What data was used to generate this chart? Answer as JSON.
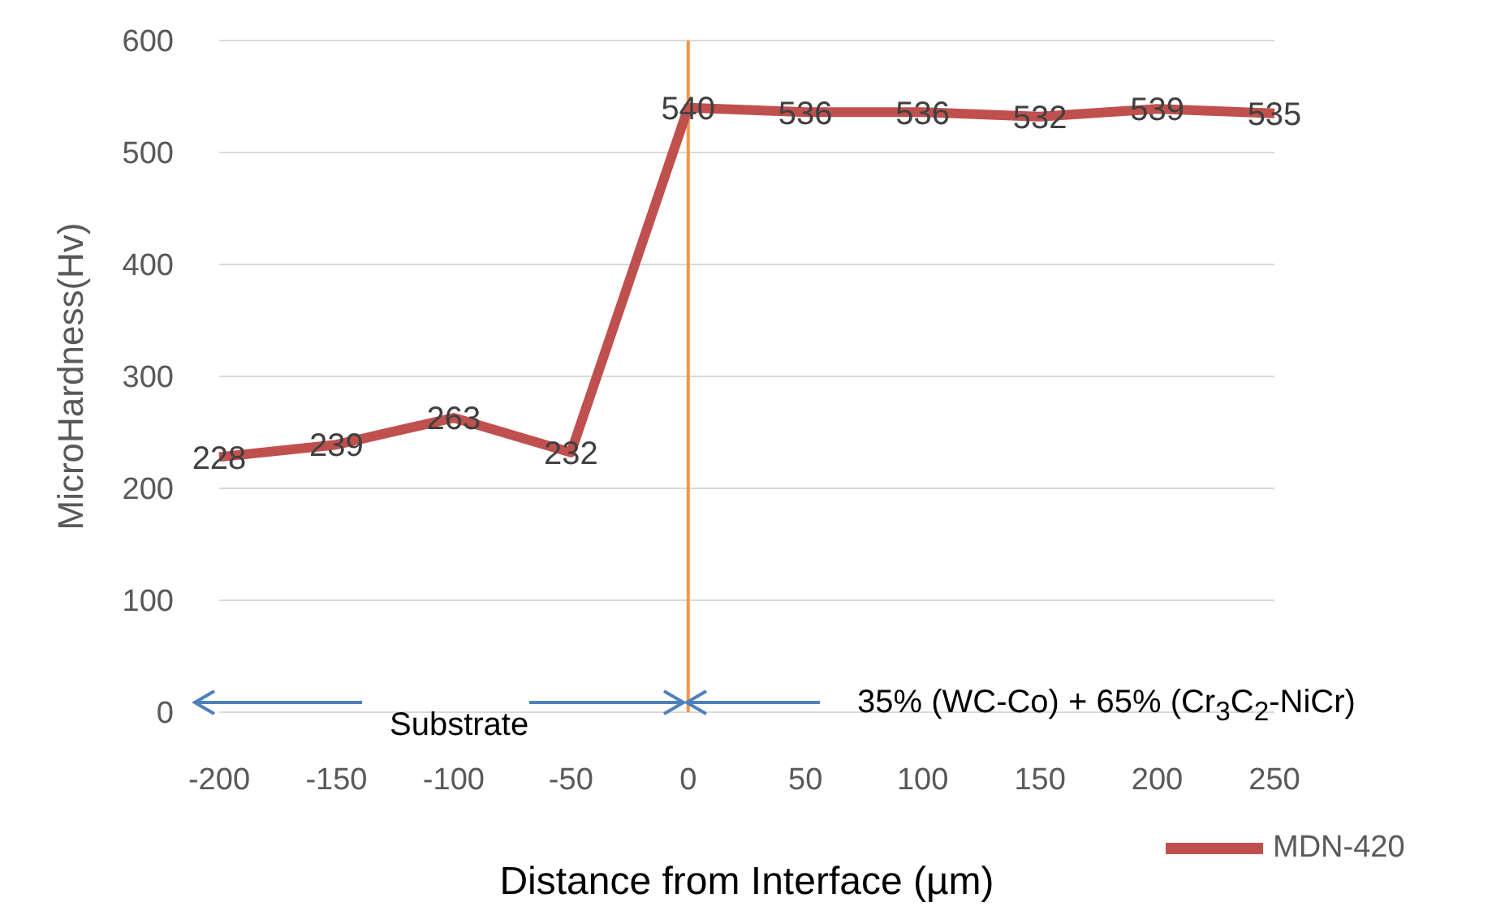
{
  "chart_data": {
    "type": "line",
    "xlabel": "Distance from Interface (µm)",
    "ylabel": "MicroHardness(Hv)",
    "categories": [
      "-200",
      "-150",
      "-100",
      "-50",
      "0",
      "50",
      "100",
      "150",
      "200",
      "250"
    ],
    "series": [
      {
        "name": "MDN-420",
        "color": "#c0504d",
        "values": [
          228,
          239,
          263,
          232,
          540,
          536,
          536,
          532,
          539,
          535
        ]
      }
    ],
    "ylim": [
      0,
      600
    ],
    "yticks": [
      0,
      100,
      200,
      300,
      400,
      500,
      600
    ],
    "grid": "y",
    "legend": "bottom right",
    "marker": "none",
    "data_labels": true,
    "ref_lines": [
      {
        "axis": "x",
        "value": "0",
        "color": "#f79646"
      }
    ],
    "annotations": [
      "Substrate",
      {
        "text": "35% (WC-Co) + 65% (Cr$_{3}$C$_{2}$-NiCr)",
        "x": "0"
      }
    ]
  }
}
